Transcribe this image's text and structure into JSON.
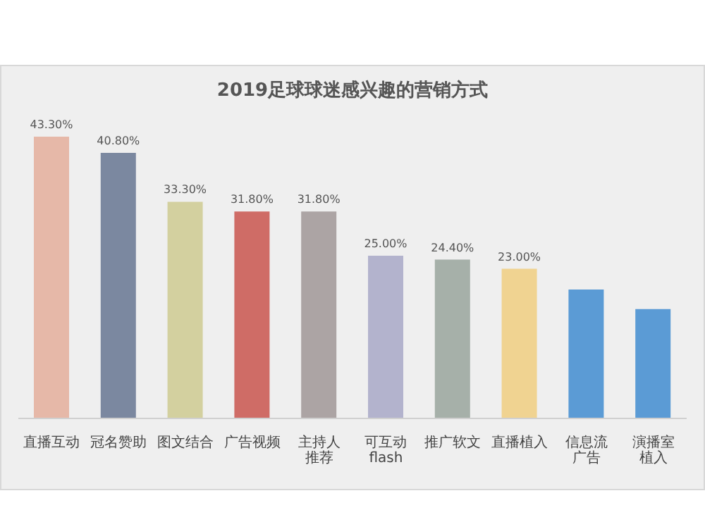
{
  "chart_data": {
    "type": "bar",
    "title": "2019足球球迷感兴趣的营销方式",
    "categories": [
      "直播互动",
      "冠名赞助",
      "图文结合",
      "广告视频",
      "主持人推荐",
      "可互动flash",
      "推广软文",
      "直播植入",
      "信息流广告",
      "演播室植入"
    ],
    "values": [
      43.3,
      40.8,
      33.3,
      31.8,
      31.8,
      25.0,
      24.4,
      23.0,
      19.8,
      16.8
    ],
    "colors": [
      "#e6b8a8",
      "#7b88a0",
      "#d3d09f",
      "#cf6c66",
      "#aca4a4",
      "#b3b3cd",
      "#a6b0a9",
      "#f0d391",
      "#5b9bd5",
      "#5b9bd5"
    ],
    "value_labels": [
      "43.30%",
      "40.80%",
      "33.30%",
      "31.80%",
      "31.80%",
      "25.00%",
      "24.40%",
      "23.00%",
      null,
      null
    ],
    "grid": false,
    "legend": false
  }
}
